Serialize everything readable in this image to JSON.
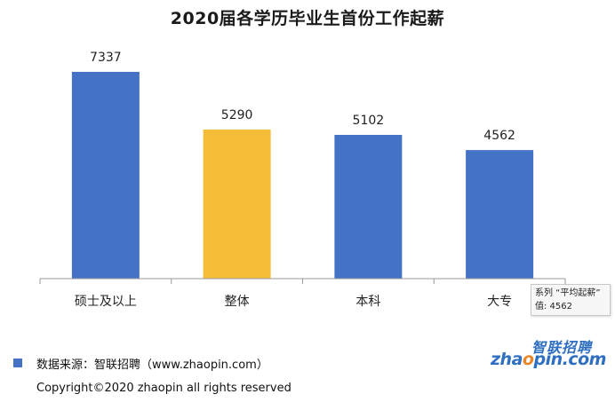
{
  "chart_data": {
    "type": "bar",
    "title": "2020届各学历毕业生首份工作起薪",
    "categories": [
      "硕士及以上",
      "整体",
      "本科",
      "大专"
    ],
    "series": [
      {
        "name": "平均起薪",
        "values": [
          7337,
          5290,
          5102,
          4562
        ]
      }
    ],
    "data_labels": [
      "7337",
      "5290",
      "5102",
      "4562"
    ],
    "bar_colors": [
      "#4472c4",
      "#f6bd3b",
      "#4472c4",
      "#4472c4"
    ],
    "ylim": [
      0,
      8000
    ],
    "grid": false,
    "xlabel": "",
    "ylabel": ""
  },
  "tooltip": {
    "series_line": "系列 “平均起薪”",
    "value_line": "值: 4562"
  },
  "legend": {
    "text": "数据来源：智联招聘（www.zhaopin.com）",
    "color": "#4472c4"
  },
  "footer": {
    "copyright": "Copyright©2020 zhaopin all rights reserved"
  },
  "logo": {
    "cn": "智联招聘",
    "en_prefix": "zha",
    "en_o": "o",
    "en_suffix": "pin.com"
  }
}
